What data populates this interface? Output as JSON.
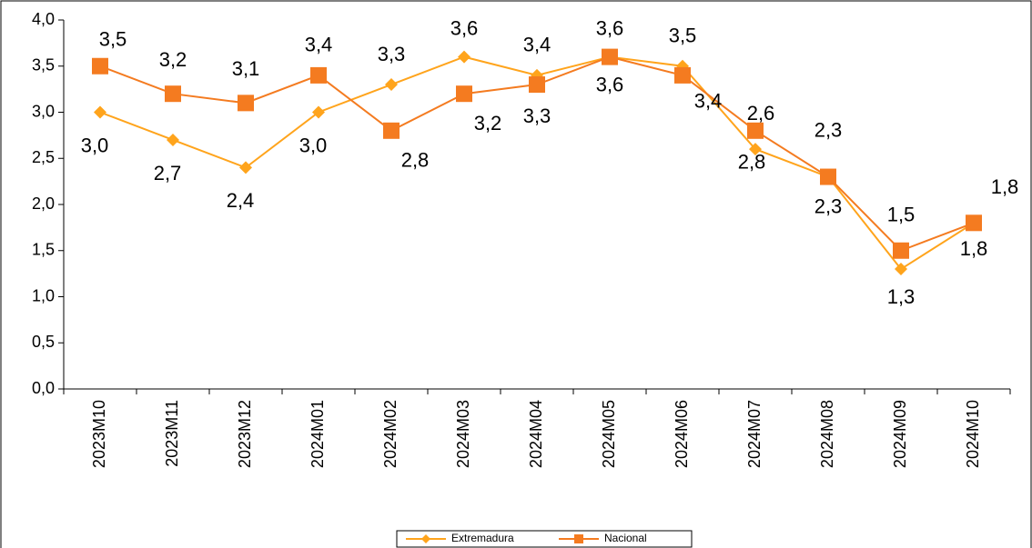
{
  "chart_data": {
    "type": "line",
    "categories": [
      "2023M10",
      "2023M11",
      "2023M12",
      "2024M01",
      "2024M02",
      "2024M03",
      "2024M04",
      "2024M05",
      "2024M06",
      "2024M07",
      "2024M08",
      "2024M09",
      "2024M10"
    ],
    "series": [
      {
        "name": "Extremadura",
        "color": "#FFA41C",
        "marker": "diamond",
        "values": [
          3.0,
          2.7,
          2.4,
          3.0,
          3.3,
          3.6,
          3.4,
          3.6,
          3.5,
          2.6,
          2.3,
          1.3,
          1.8
        ],
        "value_labels": [
          "3,0",
          "2,7",
          "2,4",
          "3,0",
          "3,3",
          "3,6",
          "3,4",
          "3,6",
          "3,5",
          "2,6",
          "2,3",
          "1,3",
          "1,8"
        ]
      },
      {
        "name": "Nacional",
        "color": "#F47B20",
        "marker": "square",
        "values": [
          3.5,
          3.2,
          3.1,
          3.4,
          2.8,
          3.2,
          3.3,
          3.6,
          3.4,
          2.8,
          2.3,
          1.5,
          1.8
        ],
        "value_labels": [
          "3,5",
          "3,2",
          "3,1",
          "3,4",
          "2,8",
          "3,2",
          "3,3",
          "3,6",
          "3,4",
          "2,8",
          "2,3",
          "1,5",
          "1,8"
        ]
      }
    ],
    "ylim": [
      0,
      4
    ],
    "yticks": [
      {
        "value": 0,
        "label": "0,0"
      },
      {
        "value": 0.5,
        "label": "0,5"
      },
      {
        "value": 1,
        "label": "1,0"
      },
      {
        "value": 1.5,
        "label": "1,5"
      },
      {
        "value": 2,
        "label": "2,0"
      },
      {
        "value": 2.5,
        "label": "2,5"
      },
      {
        "value": 3,
        "label": "3,0"
      },
      {
        "value": 3.5,
        "label": "3,5"
      },
      {
        "value": 4,
        "label": "4,0"
      }
    ],
    "legend": "bottom"
  }
}
